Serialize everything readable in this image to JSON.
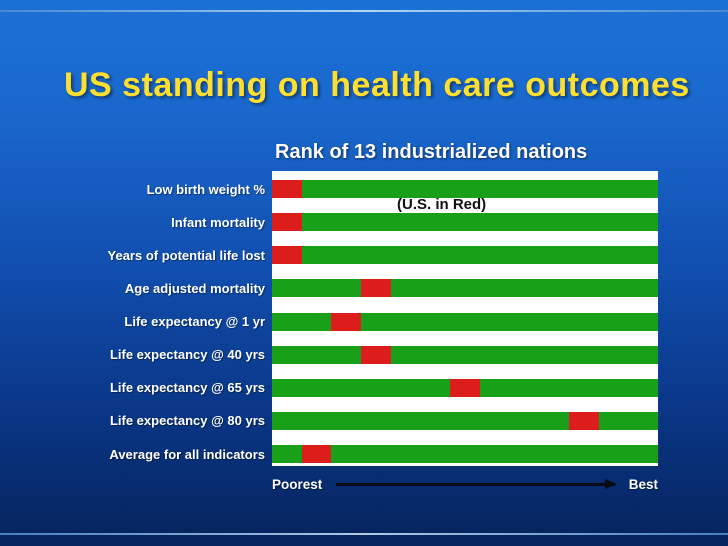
{
  "slide": {
    "title": "US standing on health care outcomes"
  },
  "chart_data": {
    "type": "bar",
    "title": "Rank of 13 industrialized nations",
    "annotation": "(U.S. in Red)",
    "num_nations": 13,
    "categories": [
      "Low birth weight %",
      "Infant mortality",
      "Years of potential life lost",
      "Age adjusted mortality",
      "Life expectancy @ 1 yr",
      "Life expectancy @ 40 yrs",
      "Life expectancy @ 65 yrs",
      "Life expectancy @ 80 yrs",
      "Average for all indicators"
    ],
    "us_position_from_poorest": [
      1,
      1,
      1,
      4,
      3,
      4,
      7,
      11,
      2
    ],
    "axis": {
      "left_label": "Poorest",
      "right_label": "Best"
    },
    "colors": {
      "bar": "#18a018",
      "us": "#dd1c1c",
      "plot_background": "#ffffff",
      "title_text": "#ffdf2e"
    }
  }
}
